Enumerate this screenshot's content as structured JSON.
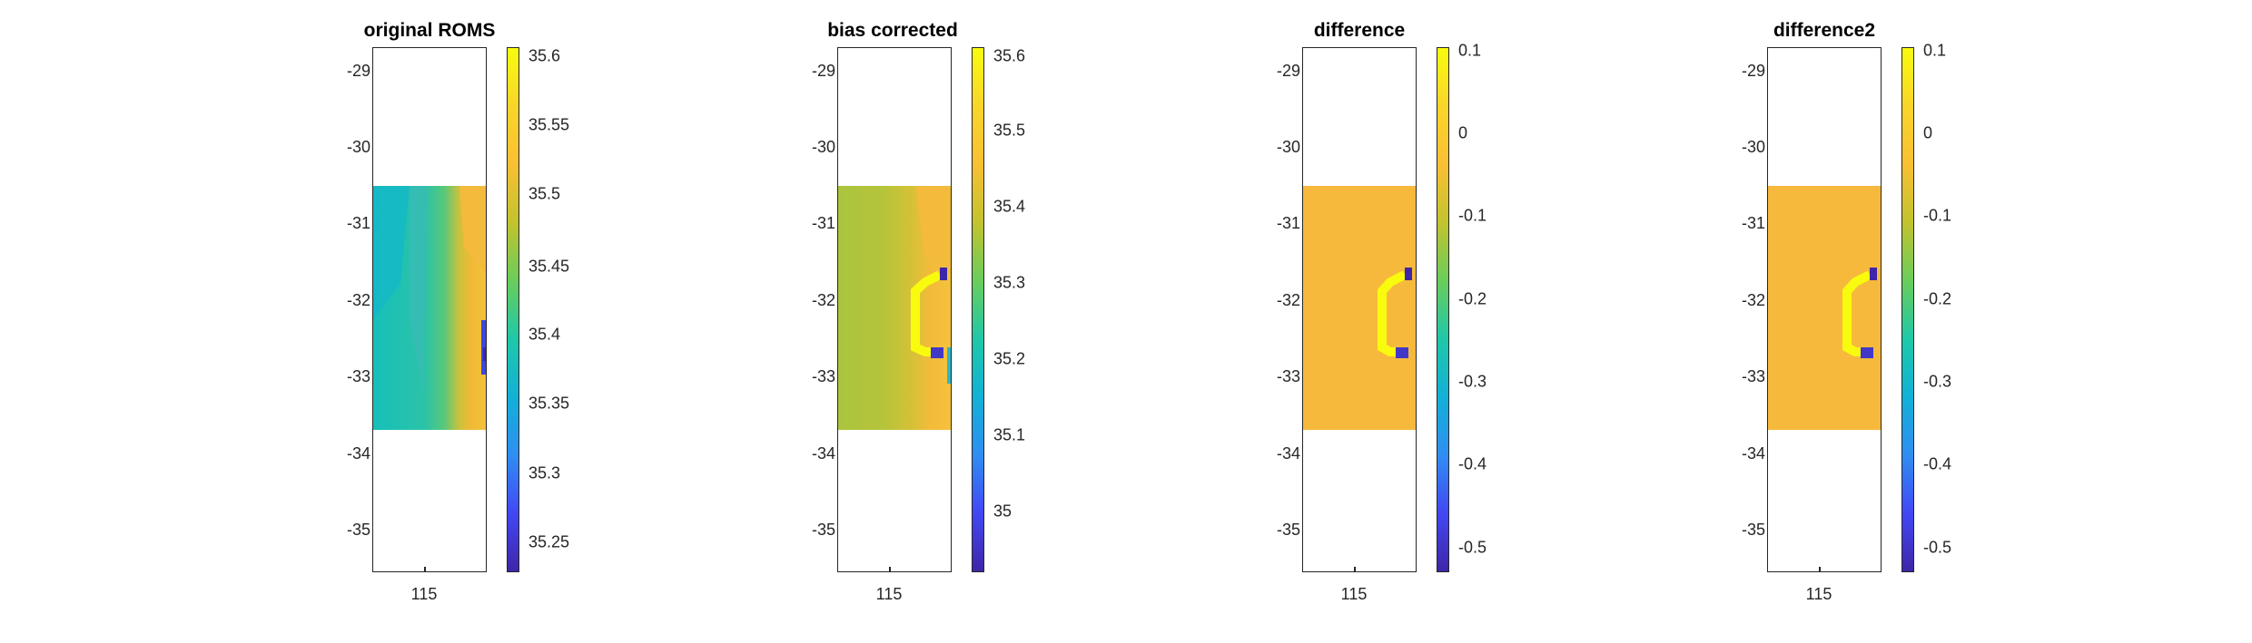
{
  "colormap": "parula",
  "colors": {
    "background": "#ffffff",
    "axis": "#262626"
  },
  "chart_data": [
    {
      "type": "heatmap",
      "title": "original ROMS",
      "xlabel": "",
      "ylabel": "",
      "xticks": [
        "115"
      ],
      "yticks": [
        "-29",
        "-30",
        "-31",
        "-32",
        "-33",
        "-34",
        "-35"
      ],
      "ylim": [
        -35.5,
        -28.65
      ],
      "data_extent_lat": [
        -33.7,
        -30.5
      ],
      "colorbar": {
        "range": [
          35.22,
          35.61
        ],
        "ticks": [
          "35.25",
          "35.3",
          "35.35",
          "35.4",
          "35.45",
          "35.5",
          "35.55",
          "35.6"
        ]
      },
      "field": "salinity gradient: ~35.42 offshore (west) rising to ~35.55 nearshore (east), ~35.25 patches at the eastern edge"
    },
    {
      "type": "heatmap",
      "title": "bias corrected",
      "xlabel": "",
      "ylabel": "",
      "xticks": [
        "115"
      ],
      "yticks": [
        "-29",
        "-30",
        "-31",
        "-32",
        "-33",
        "-34",
        "-35"
      ],
      "ylim": [
        -35.5,
        -28.65
      ],
      "data_extent_lat": [
        -33.7,
        -30.5
      ],
      "colorbar": {
        "range": [
          34.92,
          35.61
        ],
        "ticks": [
          "35",
          "35.1",
          "35.2",
          "35.3",
          "35.4",
          "35.5",
          "35.6"
        ]
      },
      "field": "~35.43 offshore rising to ~35.52 nearshore, bracket-shaped ~35.6 anomaly near x=115.2 between -31.8 and -32.6, ~35.0 patches at its ends"
    },
    {
      "type": "heatmap",
      "title": "difference",
      "xlabel": "",
      "ylabel": "",
      "xticks": [
        "115"
      ],
      "yticks": [
        "-29",
        "-30",
        "-31",
        "-32",
        "-33",
        "-34",
        "-35"
      ],
      "ylim": [
        -35.5,
        -28.65
      ],
      "data_extent_lat": [
        -33.7,
        -30.5
      ],
      "colorbar": {
        "range": [
          -0.54,
          0.1
        ],
        "ticks": [
          "0.1",
          "0",
          "-0.1",
          "-0.2",
          "-0.3",
          "-0.4",
          "-0.5"
        ]
      },
      "field": "uniform ~0 everywhere, bracket-shaped ~0.1 anomaly, ~-0.53 patches at bracket ends"
    },
    {
      "type": "heatmap",
      "title": "difference2",
      "xlabel": "",
      "ylabel": "",
      "xticks": [
        "115"
      ],
      "yticks": [
        "-29",
        "-30",
        "-31",
        "-32",
        "-33",
        "-34",
        "-35"
      ],
      "ylim": [
        -35.5,
        -28.65
      ],
      "data_extent_lat": [
        -33.7,
        -30.5
      ],
      "colorbar": {
        "range": [
          -0.54,
          0.1
        ],
        "ticks": [
          "0.1",
          "0",
          "-0.1",
          "-0.2",
          "-0.3",
          "-0.4",
          "-0.5"
        ]
      },
      "field": "uniform ~0 everywhere, bracket-shaped ~0.1 anomaly, ~-0.53 patches at bracket ends"
    }
  ]
}
